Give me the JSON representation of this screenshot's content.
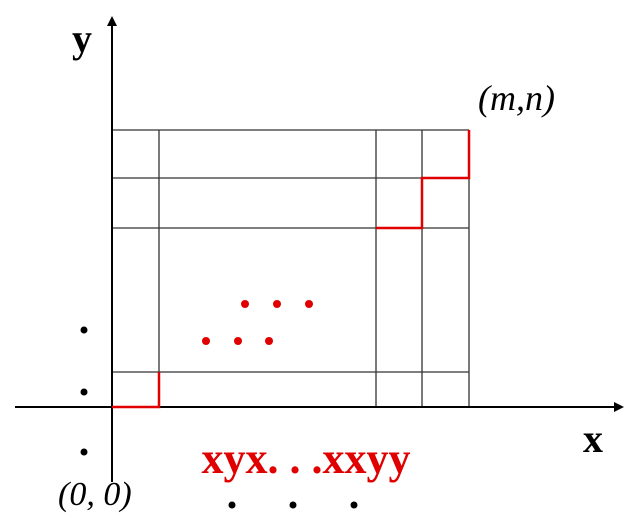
{
  "axes": {
    "y_label": "y",
    "x_label": "x"
  },
  "corner_labels": {
    "end": "(m,n)",
    "origin": "(0, 0)"
  },
  "path_label": "xyx. . .xxyy"
}
